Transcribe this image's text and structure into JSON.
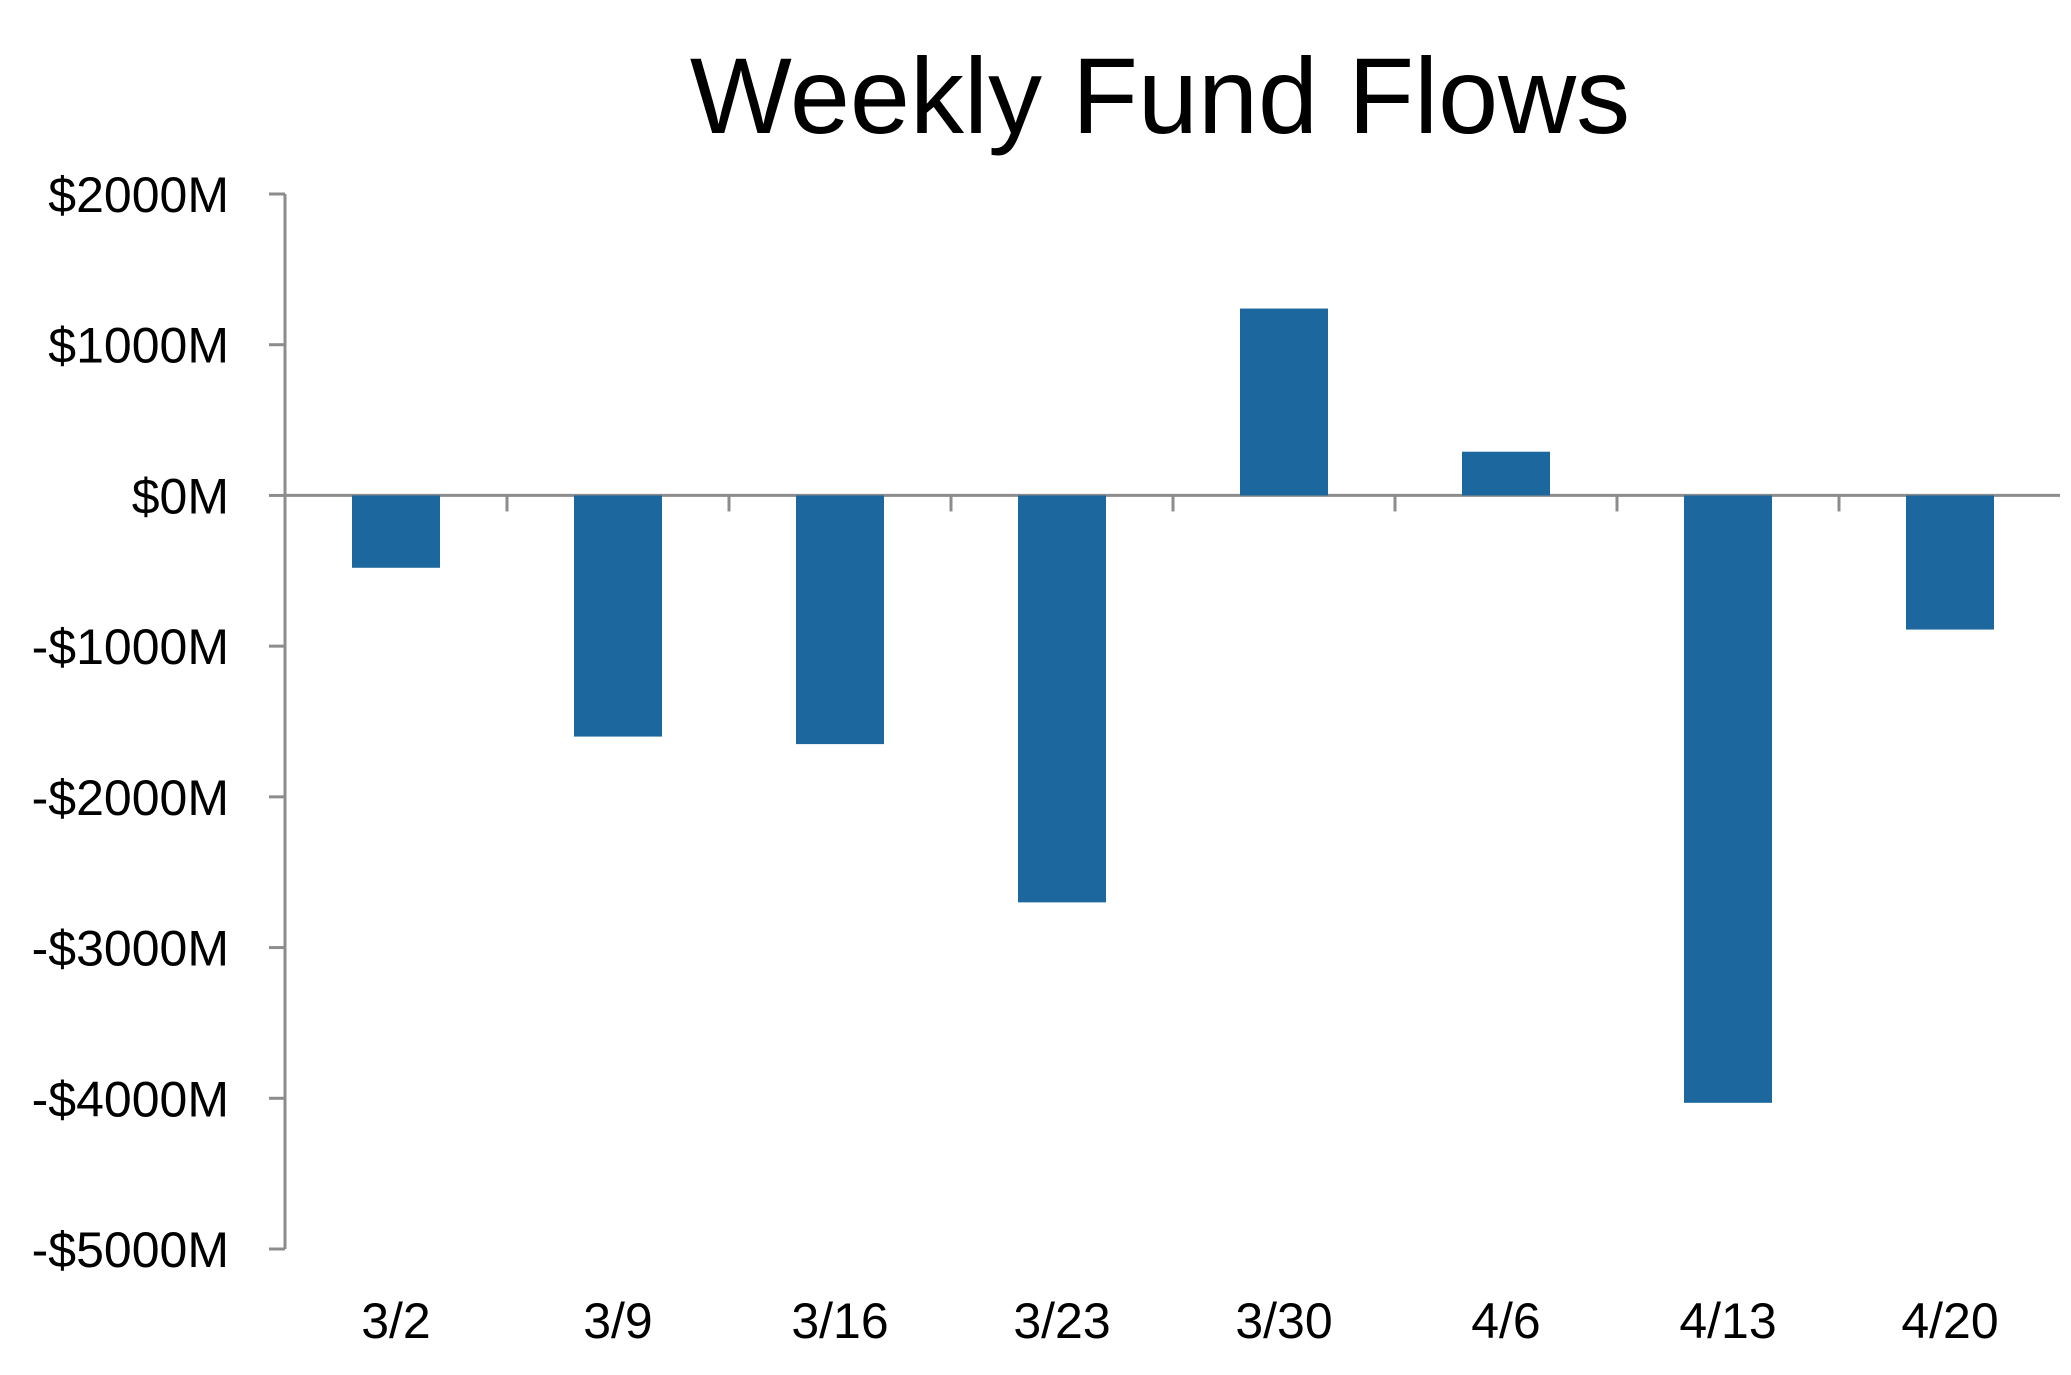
{
  "chart_data": {
    "type": "bar",
    "title": "Weekly Fund Flows",
    "xlabel": "",
    "ylabel": "",
    "categories": [
      "3/2",
      "3/9",
      "3/16",
      "3/23",
      "3/30",
      "4/6",
      "4/13",
      "4/20"
    ],
    "values": [
      -480,
      -1600,
      -1650,
      -2700,
      1240,
      290,
      -4030,
      -890
    ],
    "unit": "$M",
    "ylim": [
      -5000,
      2000
    ],
    "yticks": [
      2000,
      1000,
      0,
      -1000,
      -2000,
      -3000,
      -4000,
      -5000
    ],
    "ytick_labels": [
      "$2000M",
      "$1000M",
      "$0M",
      "-$1000M",
      "-$2000M",
      "-$3000M",
      "-$4000M",
      "-$5000M"
    ],
    "bar_color": "#1b679e",
    "axis_color": "#8c8c8c",
    "grid": false,
    "legend": "none"
  }
}
